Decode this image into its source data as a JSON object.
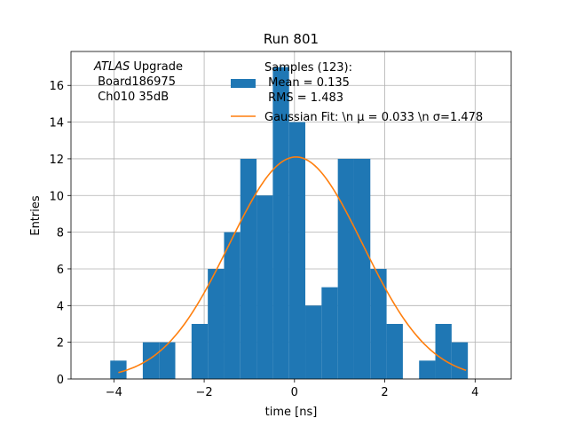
{
  "chart_data": {
    "type": "bar",
    "title": "Run 801",
    "xlabel": "time [ns]",
    "ylabel": "Entries",
    "xlim": [
      -4.95,
      4.8
    ],
    "ylim": [
      0,
      17.85
    ],
    "xticks": [
      -4,
      -2,
      0,
      2,
      4
    ],
    "yticks": [
      0,
      2,
      4,
      6,
      8,
      10,
      12,
      14,
      16
    ],
    "grid": true,
    "annotation": {
      "lines": [
        "ATLAS Upgrade",
        " Board186975",
        " Ch010 35dB"
      ],
      "italic_word": "ATLAS"
    },
    "legend": {
      "placement": "top-right",
      "histogram_label": [
        "Samples (123):",
        " Mean = 0.135",
        " RMS = 1.483"
      ],
      "fit_label": "Gaussian Fit: \\n μ = 0.033 \\n σ=1.478"
    },
    "histogram": {
      "bin_edges": [
        -4.08,
        -3.72,
        -3.36,
        -3.0,
        -2.64,
        -2.28,
        -1.92,
        -1.56,
        -1.2,
        -0.84,
        -0.48,
        -0.12,
        0.24,
        0.6,
        0.96,
        1.32,
        1.68,
        2.04,
        2.4,
        2.76,
        3.12,
        3.48,
        3.84
      ],
      "counts": [
        1,
        0,
        2,
        2,
        0,
        3,
        6,
        8,
        12,
        10,
        17,
        14,
        4,
        5,
        12,
        12,
        6,
        3,
        0,
        1,
        3,
        2
      ],
      "color": "#1f77b4"
    },
    "fit": {
      "amplitude": 12.1,
      "mean": 0.033,
      "sigma": 1.478,
      "x_range": [
        -3.9,
        3.8
      ],
      "color": "#ff7f0e"
    }
  }
}
